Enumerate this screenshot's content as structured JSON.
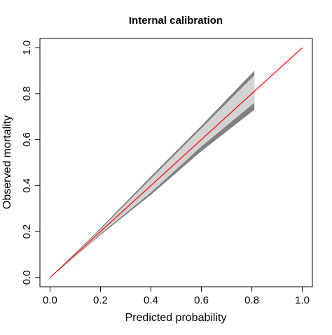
{
  "chart_data": {
    "type": "band",
    "title": "Internal calibration",
    "x_label": "Predicted probability",
    "y_label": "Observed mortality",
    "x": [
      0,
      0.2,
      0.4,
      0.6,
      0.81
    ],
    "bands": [
      {
        "color": "#808080",
        "upper": [
          0,
          0.215,
          0.44,
          0.66,
          0.9
        ],
        "lower": [
          0,
          0.185,
          0.36,
          0.55,
          0.73
        ]
      },
      {
        "color": "#d3d3d3",
        "upper": [
          0,
          0.21,
          0.43,
          0.65,
          0.88
        ],
        "lower": [
          0,
          0.19,
          0.37,
          0.57,
          0.76
        ]
      }
    ],
    "reference_line": {
      "x": [
        0,
        1
      ],
      "y": [
        0,
        1
      ],
      "color": "#ff0000"
    },
    "xlim": [
      -0.04,
      1.04
    ],
    "ylim": [
      -0.04,
      1.04
    ],
    "xticks": [
      {
        "value": 0,
        "label": "0.0"
      },
      0.2,
      0.4,
      0.6,
      0.8,
      {
        "value": 1,
        "label": "1.0"
      }
    ],
    "yticks": [
      {
        "value": 0,
        "label": "0.0"
      },
      0.2,
      0.4,
      0.6,
      0.8,
      {
        "value": 1,
        "label": "1.0"
      }
    ]
  }
}
